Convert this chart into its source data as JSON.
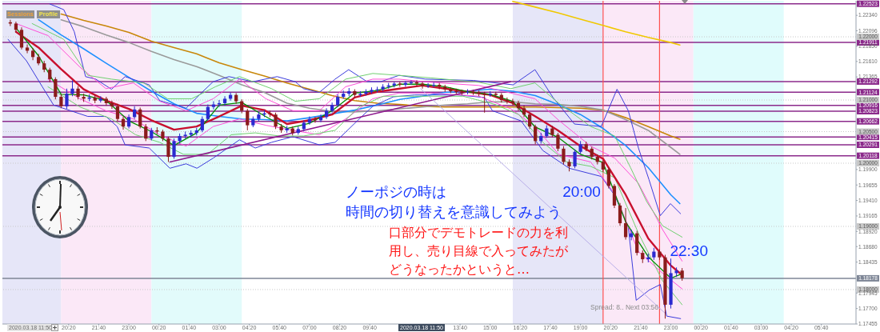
{
  "chart_data": {
    "type": "candlestick",
    "x": [
      "2020-03-17T17:45",
      "2020-03-17T18:00",
      "2020-03-17T18:15",
      "2020-03-17T18:30",
      "2020-03-17T18:45",
      "2020-03-17T19:00",
      "2020-03-17T19:15",
      "2020-03-17T19:30",
      "2020-03-17T19:45",
      "2020-03-17T20:00",
      "2020-03-17T20:15",
      "2020-03-17T20:30",
      "2020-03-17T20:45",
      "2020-03-17T21:00",
      "2020-03-17T21:15",
      "2020-03-17T21:30",
      "2020-03-17T21:45",
      "2020-03-17T22:00",
      "2020-03-17T22:15",
      "2020-03-17T22:30",
      "2020-03-17T22:45",
      "2020-03-17T23:00",
      "2020-03-17T23:15",
      "2020-03-17T23:30",
      "2020-03-17T23:45",
      "2020-03-18T00:00",
      "2020-03-18T00:15",
      "2020-03-18T00:30",
      "2020-03-18T00:45",
      "2020-03-18T01:00",
      "2020-03-18T01:15",
      "2020-03-18T01:30",
      "2020-03-18T01:45",
      "2020-03-18T02:00",
      "2020-03-18T02:15",
      "2020-03-18T02:30",
      "2020-03-18T02:45",
      "2020-03-18T03:00",
      "2020-03-18T03:15",
      "2020-03-18T03:30",
      "2020-03-18T03:45",
      "2020-03-18T04:00",
      "2020-03-18T04:15",
      "2020-03-18T04:30",
      "2020-03-18T04:45",
      "2020-03-18T05:00",
      "2020-03-18T05:15",
      "2020-03-18T05:30",
      "2020-03-18T05:45",
      "2020-03-18T06:00",
      "2020-03-18T06:15",
      "2020-03-18T06:30",
      "2020-03-18T06:45",
      "2020-03-18T07:00",
      "2020-03-18T07:15",
      "2020-03-18T07:30",
      "2020-03-18T07:45",
      "2020-03-18T08:00",
      "2020-03-18T08:15",
      "2020-03-18T08:30",
      "2020-03-18T08:45",
      "2020-03-18T09:00",
      "2020-03-18T09:15",
      "2020-03-18T09:30",
      "2020-03-18T09:45",
      "2020-03-18T10:00",
      "2020-03-18T10:15",
      "2020-03-18T10:30",
      "2020-03-18T10:45",
      "2020-03-18T11:00",
      "2020-03-18T11:15",
      "2020-03-18T11:30",
      "2020-03-18T11:45",
      "2020-03-18T12:00",
      "2020-03-18T12:15",
      "2020-03-18T12:30",
      "2020-03-18T12:45",
      "2020-03-18T13:00",
      "2020-03-18T13:15",
      "2020-03-18T13:30",
      "2020-03-18T13:45",
      "2020-03-18T14:00",
      "2020-03-18T14:15",
      "2020-03-18T14:30",
      "2020-03-18T14:45",
      "2020-03-18T15:00",
      "2020-03-18T15:15",
      "2020-03-18T15:30",
      "2020-03-18T15:45",
      "2020-03-18T16:00",
      "2020-03-18T16:15",
      "2020-03-18T16:30",
      "2020-03-18T16:45",
      "2020-03-18T17:00",
      "2020-03-18T17:15",
      "2020-03-18T17:30",
      "2020-03-18T17:45",
      "2020-03-18T18:00",
      "2020-03-18T18:15",
      "2020-03-18T18:30",
      "2020-03-18T18:45",
      "2020-03-18T19:00",
      "2020-03-18T19:15",
      "2020-03-18T19:30",
      "2020-03-18T19:45",
      "2020-03-18T20:00",
      "2020-03-18T20:15",
      "2020-03-18T20:30",
      "2020-03-18T20:45",
      "2020-03-18T21:00",
      "2020-03-18T21:15",
      "2020-03-18T21:30",
      "2020-03-18T21:45",
      "2020-03-18T22:00",
      "2020-03-18T22:15",
      "2020-03-18T22:30",
      "2020-03-18T22:45",
      "2020-03-18T23:00",
      "2020-03-18T23:15",
      "2020-03-18T23:30"
    ],
    "ohlc": [
      [
        1.2223,
        1.2227,
        1.2217,
        1.2221
      ],
      [
        1.2221,
        1.2224,
        1.2207,
        1.2211
      ],
      [
        1.2211,
        1.2215,
        1.218,
        1.2183
      ],
      [
        1.2183,
        1.2188,
        1.2174,
        1.2178
      ],
      [
        1.2178,
        1.2182,
        1.2163,
        1.2168
      ],
      [
        1.2168,
        1.2173,
        1.2155,
        1.2158
      ],
      [
        1.2158,
        1.2162,
        1.2144,
        1.2148
      ],
      [
        1.2148,
        1.2151,
        1.2128,
        1.2133
      ],
      [
        1.2133,
        1.2136,
        1.2101,
        1.2105
      ],
      [
        1.2105,
        1.2109,
        1.2087,
        1.209
      ],
      [
        1.209,
        1.2118,
        1.2086,
        1.211
      ],
      [
        1.211,
        1.2131,
        1.2106,
        1.2118
      ],
      [
        1.2118,
        1.2122,
        1.2101,
        1.2105
      ],
      [
        1.2105,
        1.211,
        1.2097,
        1.2102
      ],
      [
        1.2102,
        1.2109,
        1.2098,
        1.2104
      ],
      [
        1.2104,
        1.2108,
        1.2095,
        1.2099
      ],
      [
        1.2099,
        1.2106,
        1.2096,
        1.2102
      ],
      [
        1.2102,
        1.2105,
        1.2091,
        1.2095
      ],
      [
        1.2095,
        1.2099,
        1.2086,
        1.209
      ],
      [
        1.209,
        1.2094,
        1.2066,
        1.207
      ],
      [
        1.207,
        1.2074,
        1.2053,
        1.2058
      ],
      [
        1.2058,
        1.2077,
        1.2055,
        1.2073
      ],
      [
        1.2073,
        1.209,
        1.207,
        1.2085
      ],
      [
        1.2085,
        1.2088,
        1.2055,
        1.2058
      ],
      [
        1.2058,
        1.2062,
        1.2035,
        1.2039
      ],
      [
        1.2039,
        1.2056,
        1.2036,
        1.2052
      ],
      [
        1.2052,
        1.2057,
        1.2046,
        1.205
      ],
      [
        1.205,
        1.2053,
        1.2035,
        1.2039
      ],
      [
        1.2039,
        1.2042,
        1.2002,
        1.201
      ],
      [
        1.201,
        1.2039,
        1.2007,
        1.2035
      ],
      [
        1.2035,
        1.2047,
        1.2031,
        1.2043
      ],
      [
        1.2043,
        1.205,
        1.2039,
        1.2045
      ],
      [
        1.2045,
        1.2052,
        1.2041,
        1.2048
      ],
      [
        1.2048,
        1.2056,
        1.2044,
        1.2052
      ],
      [
        1.2052,
        1.2074,
        1.2049,
        1.207
      ],
      [
        1.207,
        1.2093,
        1.2067,
        1.2089
      ],
      [
        1.2089,
        1.2098,
        1.2085,
        1.2093
      ],
      [
        1.2093,
        1.21,
        1.2089,
        1.2095
      ],
      [
        1.2095,
        1.2106,
        1.2091,
        1.2102
      ],
      [
        1.2102,
        1.2112,
        1.2099,
        1.2108
      ],
      [
        1.2108,
        1.2111,
        1.2094,
        1.2098
      ],
      [
        1.2098,
        1.2101,
        1.2079,
        1.2083
      ],
      [
        1.2083,
        1.2086,
        1.2052,
        1.206
      ],
      [
        1.206,
        1.2074,
        1.2057,
        1.207
      ],
      [
        1.207,
        1.2081,
        1.2066,
        1.2077
      ],
      [
        1.2077,
        1.2084,
        1.2073,
        1.2079
      ],
      [
        1.2079,
        1.2083,
        1.2073,
        1.2077
      ],
      [
        1.2077,
        1.208,
        1.2054,
        1.2058
      ],
      [
        1.2058,
        1.2062,
        1.2048,
        1.2052
      ],
      [
        1.2052,
        1.2059,
        1.2048,
        1.2055
      ],
      [
        1.2055,
        1.2058,
        1.2044,
        1.2048
      ],
      [
        1.2048,
        1.2058,
        1.2045,
        1.2054
      ],
      [
        1.2054,
        1.2068,
        1.2051,
        1.2064
      ],
      [
        1.2064,
        1.2074,
        1.2061,
        1.207
      ],
      [
        1.207,
        1.2073,
        1.2064,
        1.2068
      ],
      [
        1.2068,
        1.2077,
        1.2065,
        1.2073
      ],
      [
        1.2073,
        1.2087,
        1.207,
        1.2083
      ],
      [
        1.2083,
        1.2096,
        1.208,
        1.2092
      ],
      [
        1.2092,
        1.2109,
        1.2089,
        1.2105
      ],
      [
        1.2105,
        1.2115,
        1.2102,
        1.211
      ],
      [
        1.211,
        1.2119,
        1.2106,
        1.2114
      ],
      [
        1.2114,
        1.2117,
        1.2104,
        1.2108
      ],
      [
        1.2108,
        1.2114,
        1.2105,
        1.211
      ],
      [
        1.211,
        1.2117,
        1.2107,
        1.2113
      ],
      [
        1.2113,
        1.212,
        1.211,
        1.2116
      ],
      [
        1.2116,
        1.2121,
        1.2112,
        1.2117
      ],
      [
        1.2117,
        1.2125,
        1.2114,
        1.2121
      ],
      [
        1.2121,
        1.2127,
        1.2118,
        1.2123
      ],
      [
        1.2123,
        1.2129,
        1.212,
        1.2126
      ],
      [
        1.2126,
        1.2129,
        1.2121,
        1.2124
      ],
      [
        1.2124,
        1.213,
        1.2121,
        1.2127
      ],
      [
        1.2127,
        1.2131,
        1.2124,
        1.2128
      ],
      [
        1.2128,
        1.2131,
        1.2122,
        1.2126
      ],
      [
        1.2126,
        1.2129,
        1.2118,
        1.2122
      ],
      [
        1.2122,
        1.2127,
        1.2119,
        1.2123
      ],
      [
        1.2123,
        1.2128,
        1.212,
        1.2124
      ],
      [
        1.2124,
        1.2127,
        1.2117,
        1.2121
      ],
      [
        1.2121,
        1.2124,
        1.2113,
        1.2117
      ],
      [
        1.2117,
        1.212,
        1.2111,
        1.2114
      ],
      [
        1.2114,
        1.2118,
        1.211,
        1.2113
      ],
      [
        1.2113,
        1.2116,
        1.2108,
        1.2112
      ],
      [
        1.2112,
        1.2117,
        1.2109,
        1.2113
      ],
      [
        1.2113,
        1.2116,
        1.2108,
        1.2112
      ],
      [
        1.2112,
        1.2115,
        1.2106,
        1.211
      ],
      [
        1.211,
        1.2113,
        1.208,
        1.2108
      ],
      [
        1.2108,
        1.2114,
        1.2105,
        1.211
      ],
      [
        1.211,
        1.2113,
        1.2104,
        1.2108
      ],
      [
        1.2108,
        1.2111,
        1.2096,
        1.21
      ],
      [
        1.21,
        1.2104,
        1.2094,
        1.2098
      ],
      [
        1.2098,
        1.2102,
        1.2091,
        1.2095
      ],
      [
        1.2095,
        1.2099,
        1.2083,
        1.2087
      ],
      [
        1.2087,
        1.2091,
        1.2073,
        1.2077
      ],
      [
        1.2077,
        1.208,
        1.2054,
        1.2058
      ],
      [
        1.2058,
        1.2061,
        1.203,
        1.2035
      ],
      [
        1.2035,
        1.2048,
        1.2031,
        1.2043
      ],
      [
        1.2043,
        1.206,
        1.204,
        1.2055
      ],
      [
        1.2055,
        1.2059,
        1.2041,
        1.2045
      ],
      [
        1.2045,
        1.2048,
        1.2019,
        1.2023
      ],
      [
        1.2023,
        1.2027,
        1.1998,
        1.2002
      ],
      [
        1.2002,
        1.2006,
        1.1987,
        1.1995
      ],
      [
        1.1995,
        1.2022,
        1.1992,
        1.2018
      ],
      [
        1.2018,
        1.2035,
        1.2015,
        1.203
      ],
      [
        1.203,
        1.2034,
        1.2019,
        1.2023
      ],
      [
        1.2023,
        1.2026,
        1.2006,
        1.201
      ],
      [
        1.201,
        1.2014,
        1.1998,
        1.2002
      ],
      [
        1.2002,
        1.2005,
        1.1986,
        1.199
      ],
      [
        1.199,
        1.1993,
        1.196,
        1.1964
      ],
      [
        1.1964,
        1.1967,
        1.1929,
        1.1933
      ],
      [
        1.1933,
        1.1937,
        1.1901,
        1.1905
      ],
      [
        1.1905,
        1.1929,
        1.1879,
        1.1883
      ],
      [
        1.1883,
        1.1895,
        1.1878,
        1.1889
      ],
      [
        1.1889,
        1.1893,
        1.1854,
        1.1858
      ],
      [
        1.1858,
        1.1862,
        1.1842,
        1.1848
      ],
      [
        1.1848,
        1.1857,
        1.1843,
        1.1851
      ],
      [
        1.1851,
        1.1866,
        1.1847,
        1.186
      ],
      [
        1.186,
        1.1864,
        1.1847,
        1.1851
      ],
      [
        1.1851,
        1.1855,
        1.1754,
        1.1776
      ],
      [
        1.1776,
        1.1849,
        1.177,
        1.1826
      ],
      [
        1.1826,
        1.1835,
        1.182,
        1.183
      ],
      [
        1.183,
        1.1834,
        1.1814,
        1.1818
      ]
    ],
    "colors": [
      "#8b1c1c",
      "#8b1c1c",
      "#8b1c1c",
      "#8b1c1c",
      "#8b1c1c",
      "#8b1c1c",
      "#8b1c1c",
      "#8b1c1c",
      "#8b1c1c",
      "#8b1c1c",
      "#2a2ad0",
      "#2a2ad0",
      "#8b1c1c",
      "#8b1c1c",
      "#2a2ad0",
      "#8b1c1c",
      "#2a2ad0",
      "#8b1c1c",
      "#8b1c1c",
      "#8b1c1c",
      "#8b1c1c",
      "#2a2ad0",
      "#2a2ad0",
      "#8b1c1c",
      "#8b1c1c",
      "#2a2ad0",
      "#8b1c1c",
      "#8b1c1c",
      "#8b1c1c",
      "#2a2ad0",
      "#2a2ad0",
      "#2a2ad0",
      "#2a2ad0",
      "#2a2ad0",
      "#2a2ad0",
      "#2a2ad0",
      "#2a2ad0",
      "#2a2ad0",
      "#2a2ad0",
      "#2a2ad0",
      "#8b1c1c",
      "#8b1c1c",
      "#8b1c1c",
      "#2a2ad0",
      "#2a2ad0",
      "#2a2ad0",
      "#8b1c1c",
      "#8b1c1c",
      "#8b1c1c",
      "#2a2ad0",
      "#8b1c1c",
      "#2a2ad0",
      "#2a2ad0",
      "#2a2ad0",
      "#8b1c1c",
      "#2a2ad0",
      "#2a2ad0",
      "#2a2ad0",
      "#2a2ad0",
      "#2a2ad0",
      "#2a2ad0",
      "#8b1c1c",
      "#2a2ad0",
      "#2a2ad0",
      "#2a2ad0",
      "#2a2ad0",
      "#2a2ad0",
      "#2a2ad0",
      "#2a2ad0",
      "#8b1c1c",
      "#2a2ad0",
      "#2a2ad0",
      "#8b1c1c",
      "#8b1c1c",
      "#2a2ad0",
      "#2a2ad0",
      "#8b1c1c",
      "#8b1c1c",
      "#8b1c1c",
      "#8b1c1c",
      "#8b1c1c",
      "#2a2ad0",
      "#8b1c1c",
      "#8b1c1c",
      "#8b1c1c",
      "#2a2ad0",
      "#8b1c1c",
      "#8b1c1c",
      "#8b1c1c",
      "#8b1c1c",
      "#8b1c1c",
      "#8b1c1c",
      "#8b1c1c",
      "#8b1c1c",
      "#2a2ad0",
      "#2a2ad0",
      "#8b1c1c",
      "#8b1c1c",
      "#8b1c1c",
      "#8b1c1c",
      "#2a2ad0",
      "#2a2ad0",
      "#8b1c1c",
      "#8b1c1c",
      "#8b1c1c",
      "#8b1c1c",
      "#8b1c1c",
      "#8b1c1c",
      "#8b1c1c",
      "#8b1c1c",
      "#2a2ad0",
      "#8b1c1c",
      "#8b1c1c",
      "#2a2ad0",
      "#2a2ad0",
      "#8b1c1c",
      "#8b1c1c",
      "#2a2ad0",
      "#2a2ad0",
      "#8b1c1c"
    ],
    "series": [
      {
        "type": "line",
        "color": "#f0c800",
        "x": [
          "2020-03-18T16:00",
          "2020-03-18T17:00",
          "2020-03-18T18:00",
          "2020-03-18T19:00",
          "2020-03-18T20:00",
          "2020-03-18T21:00",
          "2020-03-18T22:00",
          "2020-03-18T23:00",
          "2020-03-18T23:24"
        ],
        "values": [
          1.2256,
          1.2247,
          1.2238,
          1.2228,
          1.2218,
          1.2208,
          1.2199,
          1.2191,
          1.2187
        ]
      },
      {
        "type": "line",
        "color": "#c8870a",
        "x": [
          "2020-03-17T20:00",
          "2020-03-17T21:00",
          "2020-03-17T22:00",
          "2020-03-17T23:00",
          "2020-03-18T00:00",
          "2020-03-18T01:00",
          "2020-03-18T02:00",
          "2020-03-18T03:00",
          "2020-03-18T04:00",
          "2020-03-18T05:00",
          "2020-03-18T06:00",
          "2020-03-18T07:00",
          "2020-03-18T08:00",
          "2020-03-18T09:00",
          "2020-03-18T10:00",
          "2020-03-18T11:00",
          "2020-03-18T12:00",
          "2020-03-18T13:00",
          "2020-03-18T14:00",
          "2020-03-18T15:00",
          "2020-03-18T16:00",
          "2020-03-18T17:00",
          "2020-03-18T18:00",
          "2020-03-18T19:00",
          "2020-03-18T20:00",
          "2020-03-18T21:00",
          "2020-03-18T22:00",
          "2020-03-18T23:00",
          "2020-03-18T23:24"
        ],
        "values": [
          1.2236,
          1.2226,
          1.2217,
          1.2207,
          1.2193,
          1.2183,
          1.2173,
          1.2159,
          1.2148,
          1.2138,
          1.2127,
          1.2117,
          1.2107,
          1.2099,
          1.2095,
          1.2093,
          1.209,
          1.2089,
          1.2089,
          1.2089,
          1.2089,
          1.2089,
          1.2088,
          1.2087,
          1.2084,
          1.2072,
          1.2058,
          1.2043,
          1.2038
        ]
      },
      {
        "type": "line",
        "color": "#9a9a9a",
        "x": [
          "2020-03-17T20:00",
          "2020-03-17T21:00",
          "2020-03-17T22:00",
          "2020-03-17T23:00",
          "2020-03-18T00:00",
          "2020-03-18T01:00",
          "2020-03-18T02:00",
          "2020-03-18T03:00",
          "2020-03-18T04:00",
          "2020-03-18T05:00",
          "2020-03-18T06:00",
          "2020-03-18T07:00",
          "2020-03-18T08:00",
          "2020-03-18T09:00",
          "2020-03-18T10:00",
          "2020-03-18T11:00",
          "2020-03-18T12:00",
          "2020-03-18T13:00",
          "2020-03-18T14:00",
          "2020-03-18T15:00",
          "2020-03-18T16:00",
          "2020-03-18T17:00",
          "2020-03-18T18:00",
          "2020-03-18T19:00",
          "2020-03-18T20:00",
          "2020-03-18T21:00",
          "2020-03-18T22:00",
          "2020-03-18T23:00",
          "2020-03-18T23:24"
        ],
        "values": [
          1.2227,
          1.2216,
          1.2203,
          1.2191,
          1.2177,
          1.2164,
          1.2153,
          1.2139,
          1.2124,
          1.2112,
          1.2095,
          1.2087,
          1.2082,
          1.2081,
          1.2083,
          1.2086,
          1.2089,
          1.2092,
          1.2094,
          1.2097,
          1.2097,
          1.2094,
          1.2093,
          1.209,
          1.2084,
          1.2069,
          1.2052,
          1.2025,
          1.2014
        ]
      },
      {
        "type": "line",
        "color": "#1e90ff",
        "x": [
          "2020-03-17T19:00",
          "2020-03-17T20:00",
          "2020-03-17T21:00",
          "2020-03-17T22:00",
          "2020-03-17T23:00",
          "2020-03-18T00:00",
          "2020-03-18T01:00",
          "2020-03-18T02:00",
          "2020-03-18T03:00",
          "2020-03-18T04:00",
          "2020-03-18T05:00",
          "2020-03-18T06:00",
          "2020-03-18T07:00",
          "2020-03-18T08:00",
          "2020-03-18T09:00",
          "2020-03-18T10:00",
          "2020-03-18T11:00",
          "2020-03-18T12:00",
          "2020-03-18T13:00",
          "2020-03-18T14:00",
          "2020-03-18T15:00",
          "2020-03-18T16:00",
          "2020-03-18T17:00",
          "2020-03-18T18:00",
          "2020-03-18T19:00",
          "2020-03-18T20:00",
          "2020-03-18T21:00",
          "2020-03-18T22:00",
          "2020-03-18T23:00",
          "2020-03-18T23:24"
        ],
        "values": [
          1.2227,
          1.2203,
          1.2181,
          1.2158,
          1.2136,
          1.2114,
          1.2094,
          1.2079,
          1.2074,
          1.207,
          1.2069,
          1.2067,
          1.2072,
          1.2078,
          1.2084,
          1.2092,
          1.2101,
          1.2106,
          1.2112,
          1.2114,
          1.2117,
          1.2114,
          1.2107,
          1.2093,
          1.2077,
          1.2055,
          1.2028,
          1.1993,
          1.195,
          1.1936
        ]
      },
      {
        "type": "line",
        "color": "#3c3cdc",
        "x": [
          "2020-03-17T19:30",
          "2020-03-17T20:07",
          "2020-03-17T20:35",
          "2020-03-17T21:05",
          "2020-03-17T21:32",
          "2020-03-17T22:14",
          "2020-03-17T22:50",
          "2020-03-17T23:54",
          "2020-03-18T00:22",
          "2020-03-18T01:32",
          "2020-03-18T02:14",
          "2020-03-18T02:44",
          "2020-03-18T03:26",
          "2020-03-18T04:30",
          "2020-03-18T05:34",
          "2020-03-18T06:22",
          "2020-03-18T06:44",
          "2020-03-18T07:26",
          "2020-03-18T08:08",
          "2020-03-18T08:44",
          "2020-03-18T09:33",
          "2020-03-18T10:09",
          "2020-03-18T10:58",
          "2020-03-18T12:08",
          "2020-03-18T14:15",
          "2020-03-18T16:01",
          "2020-03-18T16:59",
          "2020-03-18T17:47",
          "2020-03-18T18:44",
          "2020-03-18T19:55",
          "2020-03-18T20:37",
          "2020-03-18T21:07",
          "2020-03-18T21:34",
          "2020-03-18T22:02",
          "2020-03-18T22:32",
          "2020-03-18T22:59",
          "2020-03-18T23:26"
        ],
        "values": [
          1.2252,
          1.2243,
          1.2208,
          1.2137,
          1.2133,
          1.2117,
          1.2137,
          1.2124,
          1.2099,
          1.2087,
          1.2112,
          1.2129,
          1.2137,
          1.2129,
          1.2137,
          1.2129,
          1.2118,
          1.2112,
          1.2133,
          1.2148,
          1.2129,
          1.2129,
          1.2139,
          1.2133,
          1.2131,
          1.2124,
          1.2148,
          1.2104,
          1.2062,
          1.2058,
          1.2117,
          1.2083,
          1.2024,
          1.1974,
          1.1917,
          1.1936,
          1.192
        ]
      },
      {
        "type": "line",
        "color": "#3c3cdc",
        "x": [
          "2020-03-17T17:39",
          "2020-03-17T18:28",
          "2020-03-17T19:10",
          "2020-03-17T19:40",
          "2020-03-17T21:11",
          "2020-03-17T21:59",
          "2020-03-17T22:29",
          "2020-03-17T22:50",
          "2020-03-17T23:54",
          "2020-03-18T00:49",
          "2020-03-18T01:32",
          "2020-03-18T02:01",
          "2020-03-18T02:44",
          "2020-03-18T03:54",
          "2020-03-18T04:36",
          "2020-03-18T05:19",
          "2020-03-18T06:16",
          "2020-03-18T07:26",
          "2020-03-18T08:08",
          "2020-03-18T09:12",
          "2020-03-18T09:48",
          "2020-03-18T10:43",
          "2020-03-18T11:40",
          "2020-03-18T13:33",
          "2020-03-18T14:45",
          "2020-03-18T15:06",
          "2020-03-18T16:22",
          "2020-03-18T17:20",
          "2020-03-18T18:30",
          "2020-03-18T19:55",
          "2020-03-18T20:31",
          "2020-03-18T21:07",
          "2020-03-18T21:28",
          "2020-03-18T22:02",
          "2020-03-18T22:32",
          "2020-03-18T22:49",
          "2020-03-18T23:26"
        ],
        "values": [
          1.2196,
          1.2162,
          1.2121,
          1.2092,
          1.2074,
          1.2074,
          1.2058,
          1.2029,
          1.2024,
          1.1992,
          1.1999,
          1.1992,
          1.2008,
          1.2037,
          1.2024,
          1.2033,
          1.2042,
          1.2029,
          1.2033,
          1.207,
          1.209,
          1.2105,
          1.2108,
          1.2108,
          1.2104,
          1.2083,
          1.2067,
          1.202,
          1.1992,
          1.1979,
          1.1949,
          1.1899,
          1.1783,
          1.1799,
          1.1808,
          1.1758,
          1.1754
        ]
      },
      {
        "type": "line",
        "color": "#ff4fd8",
        "x": [
          "2020-03-17T18:00",
          "2020-03-17T19:25",
          "2020-03-17T20:50",
          "2020-03-17T21:59",
          "2020-03-17T23:12",
          "2020-03-18T00:22",
          "2020-03-18T01:32",
          "2020-03-18T02:44",
          "2020-03-18T03:54",
          "2020-03-18T05:04",
          "2020-03-18T06:16",
          "2020-03-18T07:26",
          "2020-03-18T08:36",
          "2020-03-18T09:48",
          "2020-03-18T10:58",
          "2020-03-18T12:23",
          "2020-03-18T14:30",
          "2020-03-18T15:55",
          "2020-03-18T16:59",
          "2020-03-18T18:02",
          "2020-03-18T19:27",
          "2020-03-18T20:31",
          "2020-03-18T21:34",
          "2020-03-18T22:38",
          "2020-03-18T23:30"
        ],
        "values": [
          1.2221,
          1.2202,
          1.2152,
          1.2118,
          1.2127,
          1.2098,
          1.2083,
          1.2102,
          1.2133,
          1.2102,
          1.2083,
          1.2083,
          1.2121,
          1.2133,
          1.2133,
          1.2128,
          1.2123,
          1.2111,
          1.2102,
          1.2068,
          1.2027,
          1.2008,
          1.1968,
          1.1895,
          1.1845
        ]
      },
      {
        "type": "line",
        "color": "#ff4fd8",
        "x": [
          "2020-03-17T19:25",
          "2020-03-17T20:50",
          "2020-03-17T21:59",
          "2020-03-17T23:12",
          "2020-03-18T00:22",
          "2020-03-18T01:32",
          "2020-03-18T02:44",
          "2020-03-18T03:54",
          "2020-03-18T05:04",
          "2020-03-18T06:16",
          "2020-03-18T07:26",
          "2020-03-18T08:36",
          "2020-03-18T09:48",
          "2020-03-18T10:58",
          "2020-03-18T12:23",
          "2020-03-18T14:30",
          "2020-03-18T15:55",
          "2020-03-18T16:59",
          "2020-03-18T18:02",
          "2020-03-18T19:27",
          "2020-03-18T20:31",
          "2020-03-18T21:34",
          "2020-03-18T22:38",
          "2020-03-18T23:30"
        ],
        "values": [
          1.2133,
          1.2102,
          1.2083,
          1.207,
          1.2045,
          1.2027,
          1.2058,
          1.207,
          1.206,
          1.2052,
          1.2045,
          1.207,
          1.2102,
          1.2111,
          1.2111,
          1.2106,
          1.2086,
          1.2058,
          1.2014,
          1.2002,
          1.1952,
          1.186,
          1.1826,
          1.1801
        ]
      },
      {
        "type": "line",
        "color": "#70d070",
        "x": [
          "2020-03-17T18:43",
          "2020-03-17T20:07",
          "2020-03-17T21:11",
          "2020-03-17T22:14",
          "2020-03-17T23:40",
          "2020-03-18T00:43",
          "2020-03-18T01:47",
          "2020-03-18T02:50",
          "2020-03-18T03:54",
          "2020-03-18T05:19",
          "2020-03-18T06:22",
          "2020-03-18T07:26",
          "2020-03-18T08:36",
          "2020-03-18T09:48",
          "2020-03-18T10:58",
          "2020-03-18T12:23",
          "2020-03-18T14:30",
          "2020-03-18T15:55",
          "2020-03-18T16:59",
          "2020-03-18T18:02",
          "2020-03-18T19:27",
          "2020-03-18T20:31",
          "2020-03-18T21:13",
          "2020-03-18T21:56",
          "2020-03-18T22:38",
          "2020-03-18T23:30"
        ],
        "values": [
          1.2221,
          1.2196,
          1.2139,
          1.2133,
          1.2127,
          1.2102,
          1.2102,
          1.2121,
          1.2137,
          1.2118,
          1.2098,
          1.2102,
          1.2133,
          1.2142,
          1.2139,
          1.2135,
          1.2128,
          1.2118,
          1.2127,
          1.2095,
          1.2058,
          1.2043,
          1.1993,
          1.1939,
          1.1901,
          1.1883
        ]
      },
      {
        "type": "line",
        "color": "#70d070",
        "x": [
          "2020-03-17T19:25",
          "2020-03-17T20:50",
          "2020-03-17T22:14",
          "2020-03-17T23:18",
          "2020-03-18T00:22",
          "2020-03-18T01:25",
          "2020-03-18T02:29",
          "2020-03-18T03:32",
          "2020-03-18T04:36",
          "2020-03-18T05:40",
          "2020-03-18T06:44",
          "2020-03-18T08:08",
          "2020-03-18T09:12",
          "2020-03-18T10:16",
          "2020-03-18T11:40",
          "2020-03-18T13:48",
          "2020-03-18T15:13",
          "2020-03-18T16:16",
          "2020-03-18T17:20",
          "2020-03-18T18:23",
          "2020-03-18T19:27",
          "2020-03-18T20:31",
          "2020-03-18T21:34",
          "2020-03-18T22:38",
          "2020-03-18T23:30"
        ],
        "values": [
          1.2121,
          1.2089,
          1.207,
          1.2045,
          1.2033,
          1.2014,
          1.2014,
          1.2045,
          1.2048,
          1.2043,
          1.2043,
          1.2052,
          1.2089,
          1.2106,
          1.2106,
          1.2106,
          1.2093,
          1.2077,
          1.2033,
          1.2002,
          1.1995,
          1.1977,
          1.1889,
          1.1814,
          1.1776
        ]
      },
      {
        "type": "line",
        "color": "#8e1a8e",
        "x": [
          "2020-03-18T00:49",
          "2020-03-18T15:54"
        ],
        "values": [
          1.2002,
          1.2129
        ]
      },
      {
        "type": "line",
        "color": "#b8aee8",
        "x": [
          "2020-03-18T11:55",
          "2020-03-18T22:44"
        ],
        "values": [
          1.2118,
          1.1763
        ]
      },
      {
        "type": "line",
        "color": "#c8102e",
        "x": [
          "2020-03-17T18:00",
          "2020-03-17T19:00",
          "2020-03-17T20:00",
          "2020-03-17T21:00",
          "2020-03-17T22:00",
          "2020-03-17T23:00",
          "2020-03-18T00:00",
          "2020-03-18T01:00",
          "2020-03-18T02:00",
          "2020-03-18T03:00",
          "2020-03-18T04:00",
          "2020-03-18T05:00",
          "2020-03-18T06:00",
          "2020-03-18T07:00",
          "2020-03-18T08:00",
          "2020-03-18T09:00",
          "2020-03-18T10:00",
          "2020-03-18T11:00",
          "2020-03-18T12:00",
          "2020-03-18T13:00",
          "2020-03-18T14:00",
          "2020-03-18T15:00",
          "2020-03-18T16:00",
          "2020-03-18T17:00",
          "2020-03-18T18:00",
          "2020-03-18T19:00",
          "2020-03-18T20:00",
          "2020-03-18T21:00",
          "2020-03-18T22:00",
          "2020-03-18T23:00",
          "2020-03-18T23:30"
        ],
        "values": [
          1.2208,
          1.2183,
          1.2149,
          1.2117,
          1.2099,
          1.2086,
          1.2068,
          1.2053,
          1.2058,
          1.2074,
          1.2091,
          1.2084,
          1.2062,
          1.2068,
          1.2077,
          1.2104,
          1.2113,
          1.2118,
          1.2123,
          1.2118,
          1.2113,
          1.2108,
          1.2095,
          1.2074,
          1.2052,
          1.2027,
          1.2007,
          1.195,
          1.1881,
          1.1838,
          1.1823
        ]
      },
      {
        "type": "line",
        "color": "#008c00",
        "x": [
          "2020-03-17T18:00",
          "2020-03-17T19:00",
          "2020-03-17T20:00",
          "2020-03-17T21:00",
          "2020-03-17T22:00",
          "2020-03-17T23:00",
          "2020-03-18T00:00",
          "2020-03-18T01:00",
          "2020-03-18T02:00",
          "2020-03-18T03:00",
          "2020-03-18T04:00",
          "2020-03-18T05:00",
          "2020-03-18T06:00",
          "2020-03-18T07:00",
          "2020-03-18T08:00",
          "2020-03-18T09:00",
          "2020-03-18T10:00",
          "2020-03-18T11:00",
          "2020-03-18T12:00",
          "2020-03-18T13:00",
          "2020-03-18T14:00",
          "2020-03-18T15:00",
          "2020-03-18T16:00",
          "2020-03-18T17:00",
          "2020-03-18T18:00",
          "2020-03-18T19:00",
          "2020-03-18T20:00",
          "2020-03-18T21:00",
          "2020-03-18T22:00",
          "2020-03-18T23:00",
          "2020-03-18T23:30"
        ],
        "values": [
          1.2214,
          1.217,
          1.2109,
          1.2108,
          1.2099,
          1.2067,
          1.205,
          1.2028,
          1.2048,
          1.2092,
          1.2096,
          1.2075,
          1.2055,
          1.2063,
          1.2083,
          1.2111,
          1.2115,
          1.2125,
          1.2125,
          1.2121,
          1.2113,
          1.2109,
          1.2098,
          1.2057,
          1.2041,
          1.2014,
          1.2001,
          1.1907,
          1.1852,
          1.1818,
          1.1825
        ]
      }
    ],
    "xlim": [
      "2020-03-17T17:24",
      "2020-03-19T07:12"
    ],
    "xticks": [
      {
        "value": "2020-03-17T20:20",
        "label": "20:20"
      },
      {
        "value": "2020-03-17T21:40",
        "label": "21:40"
      },
      {
        "value": "2020-03-17T23:00",
        "label": "23:00"
      },
      {
        "value": "2020-03-18T00:20",
        "label": "00:20"
      },
      {
        "value": "2020-03-18T01:40",
        "label": "01:40"
      },
      {
        "value": "2020-03-18T03:00",
        "label": "03:00"
      },
      {
        "value": "2020-03-18T04:20",
        "label": "04:20"
      },
      {
        "value": "2020-03-18T05:40",
        "label": "05:40"
      },
      {
        "value": "2020-03-18T07:00",
        "label": "07:00"
      },
      {
        "value": "2020-03-18T08:20",
        "label": "08:20"
      },
      {
        "value": "2020-03-18T09:40",
        "label": "09:40"
      },
      {
        "value": "2020-03-18T13:40",
        "label": "13:40"
      },
      {
        "value": "2020-03-18T15:00",
        "label": "15:00"
      },
      {
        "value": "2020-03-18T16:20",
        "label": "16:20"
      },
      {
        "value": "2020-03-18T17:40",
        "label": "17:40"
      },
      {
        "value": "2020-03-18T19:00",
        "label": "19:00"
      },
      {
        "value": "2020-03-18T20:20",
        "label": "20:20"
      },
      {
        "value": "2020-03-18T21:40",
        "label": "21:40"
      },
      {
        "value": "2020-03-18T23:00",
        "label": "23:00"
      },
      {
        "value": "2020-03-19T00:20",
        "label": "00:20"
      },
      {
        "value": "2020-03-19T01:40",
        "label": "01:40"
      },
      {
        "value": "2020-03-19T03:00",
        "label": "03:00"
      },
      {
        "value": "2020-03-19T04:20",
        "label": "04:20"
      },
      {
        "value": "2020-03-19T05:40",
        "label": "05:40"
      }
    ],
    "ylim": [
      1.17455,
      1.2257
    ],
    "yticks": [
      {
        "value": 1.2234,
        "label": "1.22340"
      },
      1.22096,
      {
        "value": 1.2185,
        "label": "1.21850"
      },
      {
        "value": 1.2161,
        "label": "1.21610"
      },
      1.21365,
      {
        "value": 1.199,
        "label": "1.19900"
      },
      1.19655,
      {
        "value": 1.1941,
        "label": "1.19410"
      },
      1.19165,
      {
        "value": 1.1892,
        "label": "1.18920"
      },
      {
        "value": 1.1868,
        "label": "1.18680"
      },
      1.18435,
      1.17945,
      {
        "value": 1.177,
        "label": "1.17700"
      },
      1.17455
    ],
    "ref_lines": [
      {
        "axis": "y",
        "value": 1.22523,
        "label": "1.22523",
        "color": "#8b2a8b"
      },
      {
        "axis": "y",
        "value": 1.21911,
        "label": "1.21911",
        "color": "#8b2a8b"
      },
      {
        "axis": "y",
        "value": 1.21292,
        "label": "1.21292",
        "color": "#8b2a8b"
      },
      {
        "axis": "y",
        "value": 1.21124,
        "label": "1.21124",
        "color": "#8b2a8b"
      },
      {
        "axis": "y",
        "value": 1.20916,
        "label": "1.20916",
        "color": "#8b2a8b"
      },
      {
        "axis": "y",
        "value": 1.20823,
        "label": "1.20823",
        "color": "#8b2a8b"
      },
      {
        "axis": "y",
        "value": 1.20662,
        "label": "1.20662",
        "color": "#8b2a8b"
      },
      {
        "axis": "y",
        "value": 1.20415,
        "label": "1.20415",
        "color": "#8b2a8b"
      },
      {
        "axis": "y",
        "value": 1.20291,
        "label": "1.20291",
        "color": "#8b2a8b"
      },
      {
        "axis": "y",
        "value": 1.20118,
        "label": "1.20118",
        "color": "#8b2a8b"
      },
      {
        "axis": "y",
        "value": 1.22,
        "label": "1.22000",
        "color": "#c8c8c8",
        "line_style": "dotted"
      },
      {
        "axis": "y",
        "value": 1.21,
        "label": "1.21000",
        "color": "#c8c8c8",
        "line_style": "dotted"
      },
      {
        "axis": "y",
        "value": 1.205,
        "label": "1.20500",
        "color": "#c8c8c8",
        "line_style": "dotted"
      },
      {
        "axis": "y",
        "value": 1.2,
        "label": "1.20000",
        "color": "#c8c8c8",
        "line_style": "dotted"
      },
      {
        "axis": "y",
        "value": 1.19,
        "label": "1.19000",
        "color": "#c8c8c8",
        "line_style": "dotted"
      },
      {
        "axis": "y",
        "value": 1.18,
        "label": "1.18000",
        "color": "#c8c8c8",
        "line_style": "dotted"
      },
      {
        "axis": "y",
        "value": 1.18178,
        "label": "1.18178",
        "color": "#7e8696"
      },
      {
        "axis": "x",
        "value": "2020-03-18T20:00",
        "color": "#ff5050"
      },
      {
        "axis": "x",
        "value": "2020-03-18T22:30",
        "color": "#ff5050"
      }
    ],
    "bands": [
      {
        "axis": "x",
        "from": "2020-03-17T17:24",
        "to": "2020-03-17T20:00",
        "color": "#e6e6f8"
      },
      {
        "axis": "x",
        "from": "2020-03-17T20:00",
        "to": "2020-03-18T00:00",
        "color": "#fbe8f7"
      },
      {
        "axis": "x",
        "from": "2020-03-18T00:00",
        "to": "2020-03-18T04:00",
        "color": "#e2fbfb"
      },
      {
        "axis": "x",
        "from": "2020-03-18T16:00",
        "to": "2020-03-18T20:00",
        "color": "#e6e6f8"
      },
      {
        "axis": "x",
        "from": "2020-03-18T20:00",
        "to": "2020-03-19T00:00",
        "color": "#fbe8f7"
      },
      {
        "axis": "x",
        "from": "2020-03-19T00:00",
        "to": "2020-03-19T04:00",
        "color": "#e0fcfc"
      }
    ],
    "annotations": [
      "Sessions",
      "Profile",
      "ノーポジの時は",
      "時間の切り替えを意識してみよう",
      "口部分でデモトレードの力を利用し、売り目線で入ってみたがどうなったかというと…",
      {
        "text": "20:00",
        "x": "2020-03-18T20:00",
        "y": 1.199
      },
      {
        "text": "22:30",
        "x": "2020-03-18T22:30",
        "y": 1.1861
      },
      "Spread: 8.. Next 03:56",
      "2020.03.18 11:50",
      "2020.03.18 11:50"
    ]
  }
}
